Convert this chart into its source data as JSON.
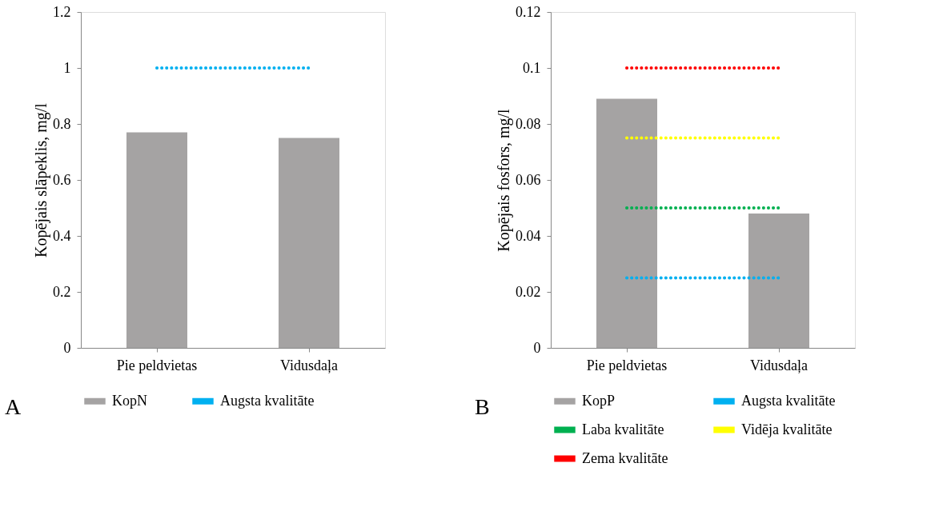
{
  "chart_data": [
    {
      "type": "bar",
      "categories": [
        "Pie peldvietas",
        "Vidusdaļa"
      ],
      "ylabel": "Kopējais slāpeklis, mg/l",
      "ylim": [
        0,
        1.2
      ],
      "yticks": [
        0,
        0.2,
        0.4,
        0.6,
        0.8,
        1,
        1.2
      ],
      "grid": false,
      "legend": "bottom",
      "annotations": [
        "A"
      ],
      "series": [
        {
          "name": "KopN",
          "color": "#a5a3a3",
          "type": "bar",
          "values": [
            0.77,
            0.75
          ]
        },
        {
          "name": "Augsta kvalitāte",
          "color": "#00b0f0",
          "type": "line",
          "line_style": "dotted",
          "values": [
            1,
            1
          ]
        }
      ]
    },
    {
      "type": "bar",
      "categories": [
        "Pie peldvietas",
        "Vidusdaļa"
      ],
      "ylabel": "Kopējais fosfors, mg/l",
      "ylim": [
        0,
        0.12
      ],
      "yticks": [
        0,
        0.02,
        0.04,
        0.06,
        0.08,
        0.1,
        0.12
      ],
      "grid": false,
      "legend": "bottom",
      "annotations": [
        "B"
      ],
      "series": [
        {
          "name": "KopP",
          "color": "#a5a3a3",
          "type": "bar",
          "values": [
            0.089,
            0.048
          ]
        },
        {
          "name": "Augsta kvalitāte",
          "color": "#00b0f0",
          "type": "line",
          "line_style": "dotted",
          "values": [
            0.025,
            0.025
          ]
        },
        {
          "name": "Laba kvalitāte",
          "color": "#00b050",
          "type": "line",
          "line_style": "dotted",
          "values": [
            0.05,
            0.05
          ]
        },
        {
          "name": "Vidēja kvalitāte",
          "color": "#ffff00",
          "type": "line",
          "line_style": "dotted",
          "values": [
            0.075,
            0.075
          ]
        },
        {
          "name": "Zema kvalitāte",
          "color": "#ff0000",
          "type": "line",
          "line_style": "dotted",
          "values": [
            0.1,
            0.1
          ]
        }
      ]
    }
  ]
}
